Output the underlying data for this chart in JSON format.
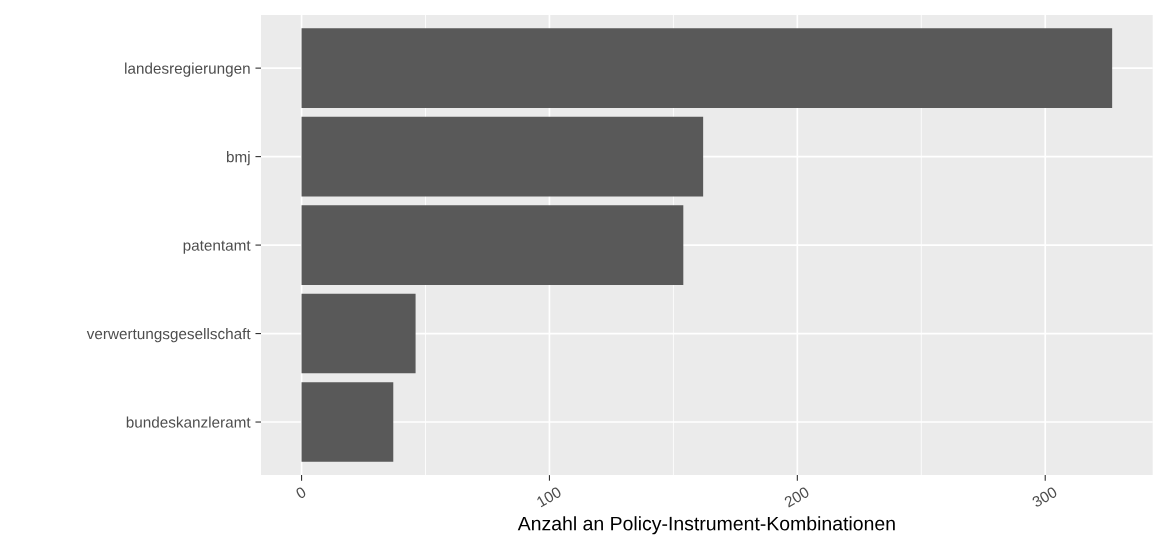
{
  "chart_data": {
    "type": "bar",
    "orientation": "horizontal",
    "categories": [
      "landesregierungen",
      "bmj",
      "patentamt",
      "verwertungsgesellschaft",
      "bundeskanzleramt"
    ],
    "values": [
      327,
      162,
      154,
      46,
      37
    ],
    "color": "#595959",
    "xlabel": "Anzahl an Policy-Instrument-Kombinationen",
    "xlim": [
      -16.35,
      343.35
    ],
    "xticks": [
      0,
      100,
      200,
      300
    ],
    "grid": true
  }
}
